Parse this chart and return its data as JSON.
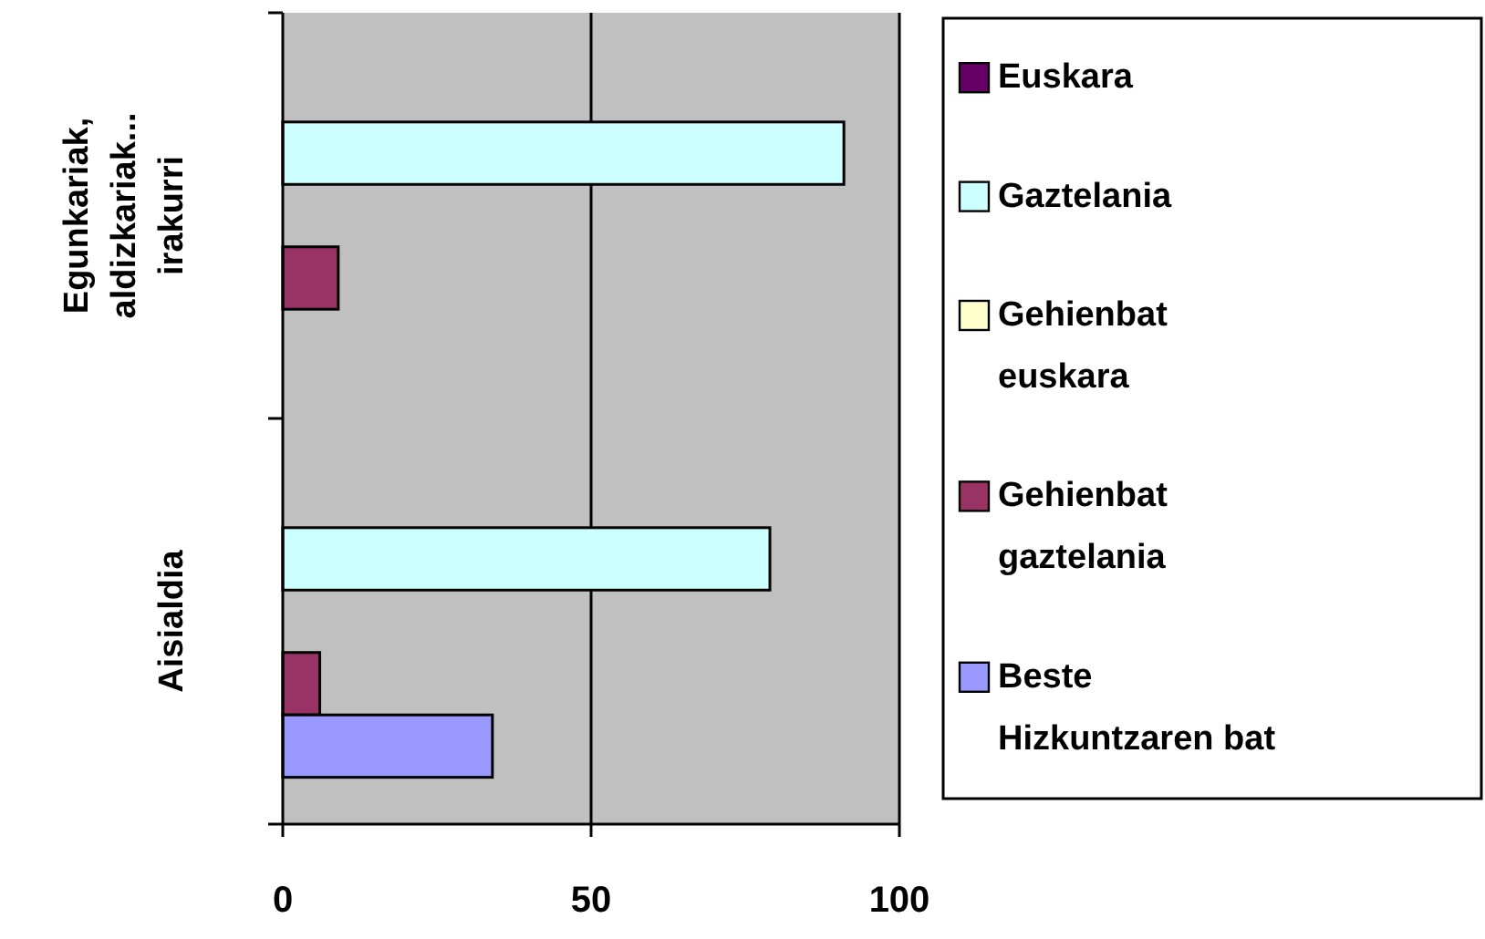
{
  "chart_data": {
    "type": "bar",
    "orientation": "horizontal",
    "categories": [
      "Egunkariak, aldizkariak... irakurri",
      "Aisialdia"
    ],
    "series": [
      {
        "name": "Euskara",
        "color": "#660066",
        "values": [
          null,
          null
        ]
      },
      {
        "name": "Gaztelania",
        "color": "#ccffff",
        "values": [
          91,
          79
        ]
      },
      {
        "name": "Gehienbat euskara",
        "color": "#ffffcc",
        "values": [
          null,
          null
        ]
      },
      {
        "name": "Gehienbat gaztelania",
        "color": "#993366",
        "values": [
          9,
          6
        ]
      },
      {
        "name": "Beste Hizkuntzaren bat",
        "color": "#9999ff",
        "values": [
          null,
          34
        ]
      }
    ],
    "xlim": [
      0,
      100
    ],
    "xticks": [
      0,
      50,
      100
    ],
    "grid": "x",
    "legend": "right"
  }
}
